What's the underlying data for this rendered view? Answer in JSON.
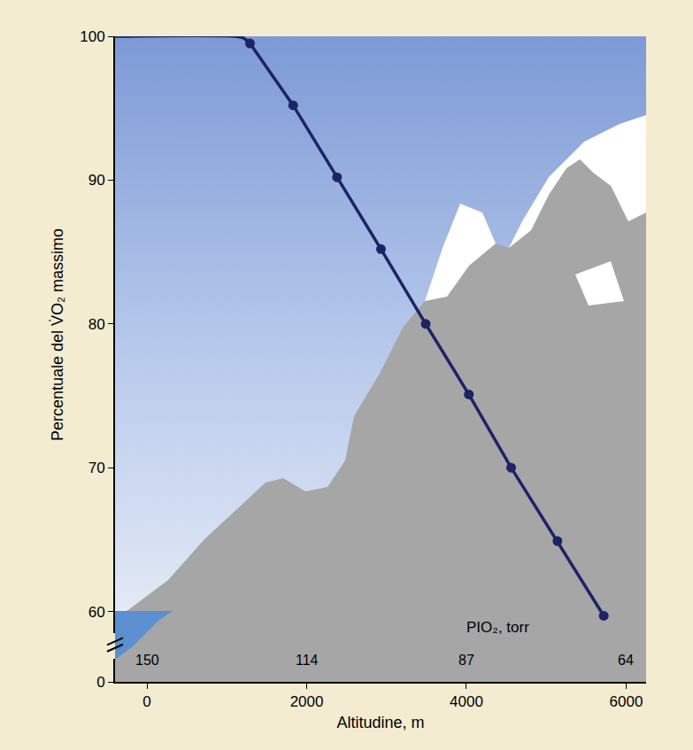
{
  "chart_data": {
    "type": "line",
    "xlabel": "Altitudine, m",
    "ylabel": "Percentuale del V̇O₂ massimo",
    "xlim": [
      -400,
      6250
    ],
    "xticks": [
      0,
      2000,
      4000,
      6000
    ],
    "ylim": [
      58.5,
      100
    ],
    "yticks": [
      60,
      70,
      80,
      90,
      100
    ],
    "ylim_lower": [
      0,
      1.5
    ],
    "yticks_lower": [
      0
    ],
    "grid": false,
    "color": "#1c2466",
    "series": [
      {
        "x": [
          -400,
          1100,
          1200,
          1290
        ],
        "values": [
          100,
          100,
          99.9,
          99.5
        ],
        "marker": "none",
        "line_style": "solid"
      },
      {
        "x": [
          1290,
          1830,
          2380,
          2930,
          3490,
          4030,
          4560,
          5140,
          5720
        ],
        "values": [
          99.5,
          95.2,
          90.2,
          85.2,
          80,
          75.1,
          70,
          64.9,
          59.7
        ],
        "marker": "circle",
        "line_style": "solid"
      }
    ],
    "pio2": {
      "label": "PIO₂, torr",
      "x": [
        0,
        2000,
        4000,
        6000
      ],
      "values": [
        150,
        114,
        87,
        64
      ]
    }
  }
}
